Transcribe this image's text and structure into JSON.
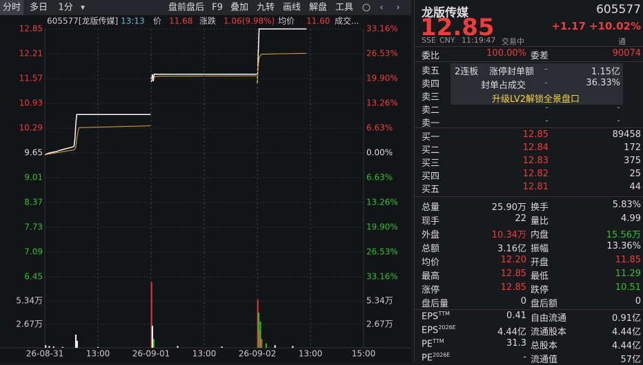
{
  "toolbar": {
    "tabs": [
      "分时",
      "多日",
      "1分"
    ],
    "menu": [
      "盘前盘后",
      "F9",
      "叠加",
      "九转",
      "画线",
      "解盘",
      "工具"
    ]
  },
  "chart_header": {
    "code": "605577[龙版传媒]",
    "time": "13:13",
    "price_label": "价",
    "price": "11.68",
    "change_label": "涨跌",
    "change": "1.06(9.98%)",
    "avg_label": "均价",
    "avg": "11.60",
    "volume_label": "成交..."
  },
  "chart_data": [
    {
      "type": "line",
      "x": [
        0,
        4,
        8,
        15,
        25,
        35,
        45,
        55,
        62,
        66,
        68,
        70,
        72,
        75,
        77,
        239,
        239.5,
        240,
        241,
        243,
        245,
        247,
        250,
        260,
        479,
        479.5,
        480,
        482,
        484,
        486,
        488,
        490,
        591
      ],
      "series": [
        {
          "name": "价",
          "color": "#ffffff",
          "values": [
            9.6,
            9.62,
            9.64,
            9.66,
            9.68,
            9.72,
            9.75,
            9.78,
            9.8,
            9.82,
            10.0,
            10.4,
            10.64,
            10.64,
            10.64,
            10.64,
            null,
            11.6,
            11.48,
            11.68,
            11.5,
            11.68,
            11.68,
            11.68,
            11.68,
            null,
            11.45,
            12.2,
            12.85,
            12.85,
            12.85,
            12.85,
            12.85
          ]
        },
        {
          "name": "均价",
          "color": "#e8a838",
          "values": [
            9.6,
            9.61,
            9.62,
            9.63,
            9.65,
            9.67,
            9.69,
            9.71,
            9.72,
            9.73,
            9.75,
            9.8,
            10.0,
            10.2,
            10.3,
            10.35,
            null,
            11.6,
            11.55,
            11.58,
            11.58,
            11.6,
            11.62,
            11.63,
            11.64,
            null,
            11.45,
            11.9,
            12.1,
            12.15,
            12.18,
            12.2,
            12.22
          ]
        }
      ],
      "xlim": [
        0,
        720
      ],
      "ylim": [
        6.45,
        12.85
      ],
      "yticks": [
        12.85,
        12.21,
        11.57,
        10.93,
        10.29,
        9.65,
        9.01,
        8.37,
        7.73,
        7.09,
        6.45
      ],
      "y2lim": [
        -33.16,
        33.16
      ],
      "y2ticks": [
        {
          "value": 33.16,
          "label": "33.16%"
        },
        {
          "value": 26.53,
          "label": "26.53%"
        },
        {
          "value": 19.9,
          "label": "19.90%"
        },
        {
          "value": 13.26,
          "label": "13.26%"
        },
        {
          "value": 6.63,
          "label": "6.63%"
        },
        {
          "value": 0,
          "label": "0.00%"
        },
        {
          "value": -6.63,
          "label": "6.63%"
        },
        {
          "value": -13.26,
          "label": "13.26%"
        },
        {
          "value": -19.9,
          "label": "19.90%"
        },
        {
          "value": -26.53,
          "label": "26.53%"
        },
        {
          "value": -33.16,
          "label": "33.16%"
        }
      ],
      "grid": true
    },
    {
      "type": "bar",
      "x": [
        2,
        10,
        20,
        40,
        70,
        73,
        120,
        241,
        243,
        246,
        300,
        400,
        481,
        483,
        485,
        487,
        490,
        500,
        520,
        560
      ],
      "values": [
        3000,
        2000,
        1500,
        1000,
        15000,
        8000,
        1000,
        75000,
        25000,
        10000,
        2000,
        1500,
        55000,
        40000,
        20000,
        30000,
        10000,
        5000,
        3000,
        2000
      ],
      "colors": [
        "#ffffff",
        "#ffffff",
        "#ffffff",
        "#ffffff",
        "#ffffff",
        "#ffffff",
        "#ffffff",
        "#e23b3b",
        "#ffffff",
        "#2fbf2f",
        "#ffffff",
        "#ffffff",
        "#e23b3b",
        "#2fbf2f",
        "#e23b3b",
        "#2fbf2f",
        "#e23b3b",
        "#2fbf2f",
        "#ffffff",
        "#ffffff"
      ],
      "xlim": [
        0,
        720
      ],
      "xticks": [
        {
          "value": 0,
          "label": "26-08-31"
        },
        {
          "value": 120,
          "label": "13:00"
        },
        {
          "value": 240,
          "label": "26-09-01"
        },
        {
          "value": 360,
          "label": "13:00"
        },
        {
          "value": 480,
          "label": "26-09-02"
        },
        {
          "value": 600,
          "label": "13:00"
        },
        {
          "value": 720,
          "label": "15:00"
        }
      ],
      "ylim": [
        0,
        74600
      ],
      "yticks": [
        {
          "value": 53400,
          "label": "5.34万"
        },
        {
          "value": 26700,
          "label": "2.67万"
        }
      ],
      "grid": true
    }
  ],
  "quote": {
    "name": "龙版传媒",
    "code": "605577",
    "price": "12.85",
    "change": "+1.17",
    "change_pct": "+10.02%",
    "exchange": "SSE",
    "currency": "CNY",
    "time": "11:19:47",
    "status": "交易中",
    "tag": "通"
  },
  "order_book": {
    "ratio_label": "委比",
    "ratio": "100.00%",
    "diff_label": "委差",
    "diff": "90074",
    "asks": [
      {
        "label": "卖五"
      },
      {
        "label": "卖四"
      },
      {
        "label": "卖三"
      },
      {
        "label": "卖二",
        "price": "-",
        "volume": "-"
      },
      {
        "label": "卖一",
        "price": "-",
        "volume": "-"
      }
    ],
    "bids": [
      {
        "label": "买一",
        "price": "12.85",
        "volume": "89458"
      },
      {
        "label": "买二",
        "price": "12.84",
        "volume": "172"
      },
      {
        "label": "买三",
        "price": "12.83",
        "volume": "375"
      },
      {
        "label": "买四",
        "price": "12.82",
        "volume": "25"
      },
      {
        "label": "买五",
        "price": "12.81",
        "volume": "44"
      }
    ],
    "promo": {
      "board": "2连板",
      "seal_amount_label": "涨停封单额",
      "seal_amount_dash": "-",
      "seal_amount": "1.15亿",
      "seal_ratio_label": "封单占成交",
      "seal_ratio_dash": "-",
      "seal_ratio": "36.33%",
      "upgrade": "升级LV2解锁全景盘口"
    }
  },
  "stats": [
    [
      "总量",
      "25.90万",
      "换手",
      "5.83%"
    ],
    [
      "现手",
      "22",
      "量比",
      "4.99"
    ],
    [
      "外盘",
      "10.34万",
      "内盘",
      "15.56万"
    ],
    [
      "总额",
      "3.16亿",
      "振幅",
      "13.36%"
    ],
    [
      "均价",
      "12.20",
      "开盘",
      "11.85"
    ],
    [
      "最高",
      "12.85",
      "最低",
      "11.29"
    ],
    [
      "涨停",
      "12.85",
      "跌停",
      "10.51"
    ],
    [
      "盘后量",
      "0",
      "盘后额",
      "0"
    ]
  ],
  "financials": [
    {
      "label": "EPS",
      "sup": "TTM",
      "value": "0.41",
      "label2": "自由流通",
      "value2": "0.91亿"
    },
    {
      "label": "EPS",
      "sup": "2026E",
      "value": "4.44亿",
      "label2": "流通股本",
      "value2": "4.44亿"
    },
    {
      "label": "PE",
      "sup": "TTM",
      "value": "31.3",
      "label2": "总股本",
      "value2": "4.44亿"
    },
    {
      "label": "PE",
      "sup": "2026E",
      "value": "-",
      "label2": "流通值",
      "value2": "57亿"
    }
  ]
}
